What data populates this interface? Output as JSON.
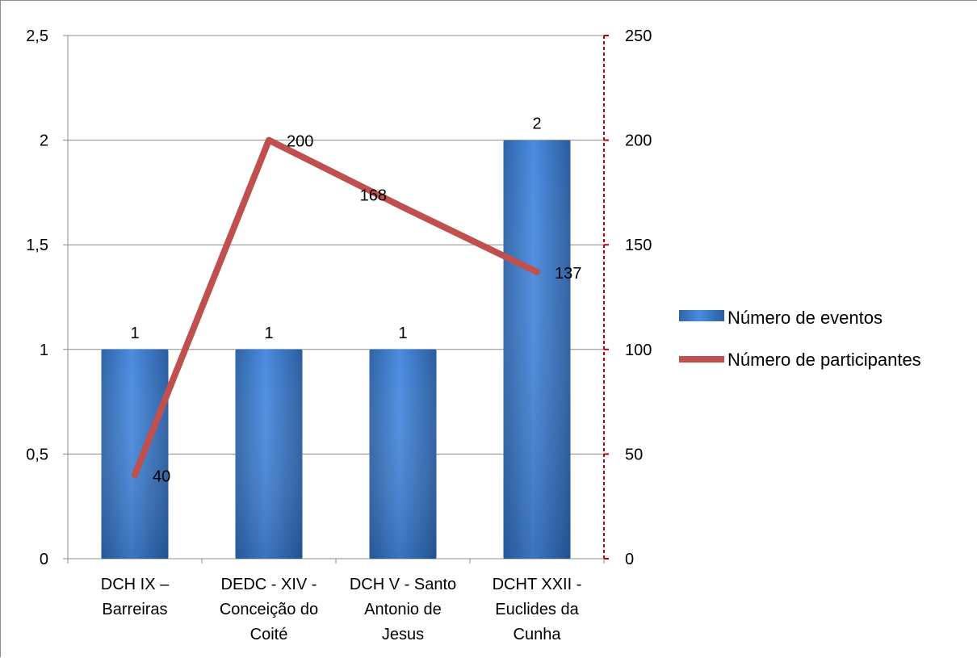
{
  "chart_data": {
    "type": "bar",
    "categories": [
      [
        "DCH IX –",
        "Barreiras"
      ],
      [
        "DEDC - XIV -",
        "Conceição do",
        "Coité"
      ],
      [
        "DCH V - Santo",
        "Antonio de",
        "Jesus"
      ],
      [
        "DCHT XXII -",
        "Euclides da",
        "Cunha"
      ]
    ],
    "series": [
      {
        "name": "Número de eventos",
        "type": "bar",
        "axis": "left",
        "values": [
          1,
          1,
          1,
          2
        ],
        "color": "#3f7fcf"
      },
      {
        "name": "Número de participantes",
        "type": "line",
        "axis": "right",
        "values": [
          40,
          200,
          168,
          137
        ],
        "color": "#c0504d"
      }
    ],
    "y_left": {
      "min": 0,
      "max": 2.5,
      "ticks": [
        "0",
        "0,5",
        "1",
        "1,5",
        "2",
        "2,5"
      ]
    },
    "y_right": {
      "min": 0,
      "max": 250,
      "ticks": [
        "0",
        "50",
        "100",
        "150",
        "200",
        "250"
      ],
      "axis_color": "#c00000"
    },
    "grid": true,
    "legend_position": "right",
    "data_labels": true
  }
}
